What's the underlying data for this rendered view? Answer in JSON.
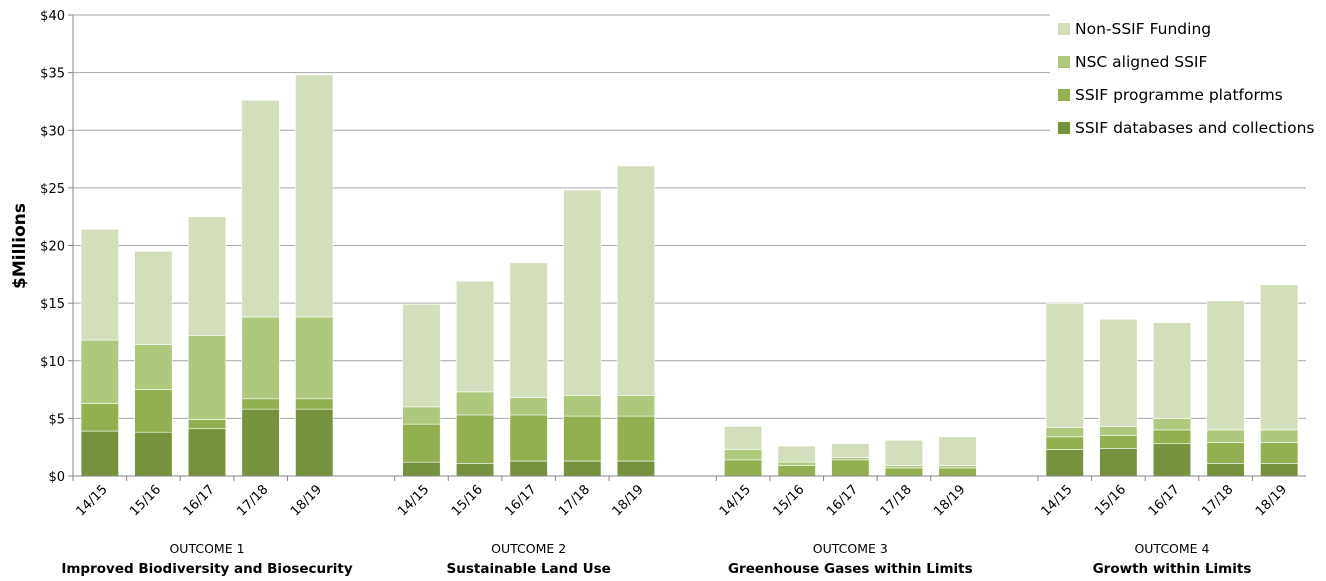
{
  "chart_data": {
    "type": "bar",
    "stacked": true,
    "ylabel": "$Millions",
    "ylim": [
      0,
      40
    ],
    "y_ticks": [
      "$0",
      "$5",
      "$10",
      "$15",
      "$20",
      "$25",
      "$30",
      "$35",
      "$40"
    ],
    "grid": true,
    "legend_position": "top-right",
    "categories": [
      "14/15",
      "15/16",
      "16/17",
      "17/18",
      "18/19"
    ],
    "groups": [
      {
        "top": "OUTCOME 1",
        "bottom": "Improved Biodiversity and Biosecurity"
      },
      {
        "top": "OUTCOME 2",
        "bottom": "Sustainable Land Use"
      },
      {
        "top": "OUTCOME 3",
        "bottom": "Greenhouse Gases within Limits"
      },
      {
        "top": "OUTCOME 4",
        "bottom": "Growth within Limits"
      }
    ],
    "series": [
      {
        "name": "SSIF databases and collections",
        "color": "#76923c",
        "values": [
          [
            3.9,
            3.8,
            4.1,
            5.8,
            5.8
          ],
          [
            1.2,
            1.1,
            1.3,
            1.3,
            1.3
          ],
          [
            0.0,
            0.0,
            0.0,
            0.0,
            0.0
          ],
          [
            2.3,
            2.4,
            2.8,
            1.1,
            1.1
          ]
        ]
      },
      {
        "name": "SSIF programme platforms",
        "color": "#92b050",
        "values": [
          [
            2.4,
            3.7,
            0.8,
            0.9,
            0.9
          ],
          [
            3.3,
            4.2,
            4.0,
            3.9,
            3.9
          ],
          [
            1.4,
            0.9,
            1.4,
            0.7,
            0.7
          ],
          [
            1.1,
            1.1,
            1.2,
            1.8,
            1.8
          ]
        ]
      },
      {
        "name": "NSC aligned SSIF",
        "color": "#aec97c",
        "values": [
          [
            5.5,
            3.9,
            7.3,
            7.1,
            7.1
          ],
          [
            1.5,
            2.0,
            1.5,
            1.8,
            1.8
          ],
          [
            0.9,
            0.3,
            0.2,
            0.2,
            0.2
          ],
          [
            0.8,
            0.8,
            1.0,
            1.1,
            1.1
          ]
        ]
      },
      {
        "name": "Non-SSIF Funding",
        "color": "#d3dfbc",
        "values": [
          [
            9.6,
            8.1,
            10.3,
            18.8,
            21.0
          ],
          [
            8.9,
            9.6,
            11.7,
            17.8,
            19.9
          ],
          [
            2.0,
            1.4,
            1.2,
            2.2,
            2.5
          ],
          [
            10.8,
            9.3,
            8.3,
            11.2,
            12.6
          ]
        ]
      }
    ]
  }
}
